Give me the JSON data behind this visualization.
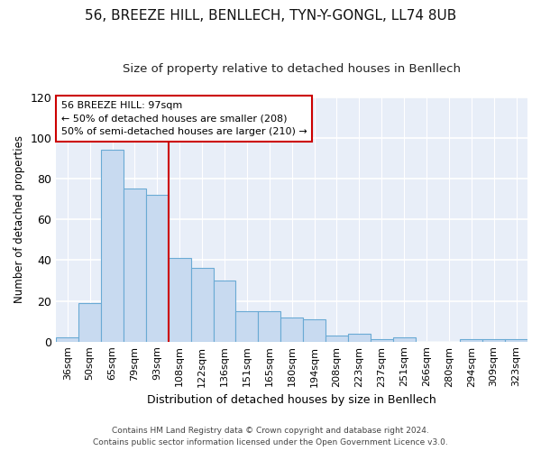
{
  "title1": "56, BREEZE HILL, BENLLECH, TYN-Y-GONGL, LL74 8UB",
  "title2": "Size of property relative to detached houses in Benllech",
  "xlabel": "Distribution of detached houses by size in Benllech",
  "ylabel": "Number of detached properties",
  "categories": [
    "36sqm",
    "50sqm",
    "65sqm",
    "79sqm",
    "93sqm",
    "108sqm",
    "122sqm",
    "136sqm",
    "151sqm",
    "165sqm",
    "180sqm",
    "194sqm",
    "208sqm",
    "223sqm",
    "237sqm",
    "251sqm",
    "266sqm",
    "280sqm",
    "294sqm",
    "309sqm",
    "323sqm"
  ],
  "values": [
    2,
    19,
    94,
    75,
    72,
    41,
    36,
    30,
    15,
    15,
    12,
    11,
    3,
    4,
    1,
    2,
    0,
    0,
    1,
    1,
    1
  ],
  "bar_color": "#c8daf0",
  "bar_edge_color": "#6aaad4",
  "vline_x": 4.5,
  "vline_color": "#cc0000",
  "ylim": [
    0,
    120
  ],
  "yticks": [
    0,
    20,
    40,
    60,
    80,
    100,
    120
  ],
  "annotation_text": "56 BREEZE HILL: 97sqm\n← 50% of detached houses are smaller (208)\n50% of semi-detached houses are larger (210) →",
  "annotation_box_facecolor": "#ffffff",
  "annotation_box_edgecolor": "#cc0000",
  "footer": "Contains HM Land Registry data © Crown copyright and database right 2024.\nContains public sector information licensed under the Open Government Licence v3.0.",
  "background_color": "#ffffff",
  "plot_bg_color": "#e8eef8",
  "grid_color": "#ffffff",
  "title1_fontsize": 11,
  "title2_fontsize": 9.5
}
